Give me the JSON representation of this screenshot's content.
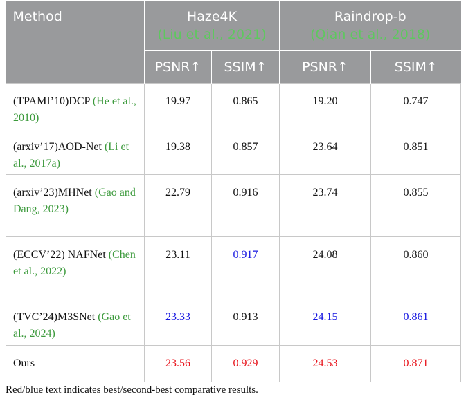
{
  "header": {
    "method": "Method",
    "groups": [
      {
        "name": "Haze4K",
        "citation": "(Liu et al., 2021)"
      },
      {
        "name": "Raindrop-b",
        "citation": "(Qian et al., 2018)"
      }
    ],
    "metrics": [
      "PSNR↑",
      "SSIM↑",
      "PSNR↑",
      "SSIM↑"
    ]
  },
  "styles": {
    "best": "#e8141c",
    "second": "#1414e0",
    "citation": "#3c9a3c",
    "header_citation": "#5ec85e"
  },
  "rows": [
    {
      "method": "(TPAMI’10)DCP",
      "citation": "(He et al., 2010)",
      "values": [
        "19.97",
        "0.865",
        "19.20",
        "0.747"
      ],
      "rank": [
        null,
        null,
        null,
        null
      ]
    },
    {
      "method": "(arxiv’17)AOD-Net",
      "citation": "(Li et al., 2017a)",
      "values": [
        "19.38",
        "0.857",
        "23.64",
        "0.851"
      ],
      "rank": [
        null,
        null,
        null,
        null
      ]
    },
    {
      "method": "(arxiv’23)MHNet",
      "citation": "(Gao and Dang, 2023)",
      "values": [
        "22.79",
        "0.916",
        "23.74",
        "0.855"
      ],
      "rank": [
        null,
        null,
        null,
        null
      ]
    },
    {
      "method": "(ECCV’22) NAFNet",
      "citation": "(Chen et al., 2022)",
      "values": [
        "23.11",
        "0.917",
        "24.08",
        "0.860"
      ],
      "rank": [
        null,
        "second",
        null,
        null
      ]
    },
    {
      "method": "(TVC’24)M3SNet",
      "citation": "(Gao et al., 2024)",
      "values": [
        "23.33",
        "0.913",
        "24.15",
        "0.861"
      ],
      "rank": [
        "second",
        null,
        "second",
        "second"
      ]
    },
    {
      "method": "Ours",
      "citation": null,
      "values": [
        "23.56",
        "0.929",
        "24.53",
        "0.871"
      ],
      "rank": [
        "best",
        "best",
        "best",
        "best"
      ]
    }
  ],
  "footnote": "Red/blue text indicates best/second-best comparative results."
}
